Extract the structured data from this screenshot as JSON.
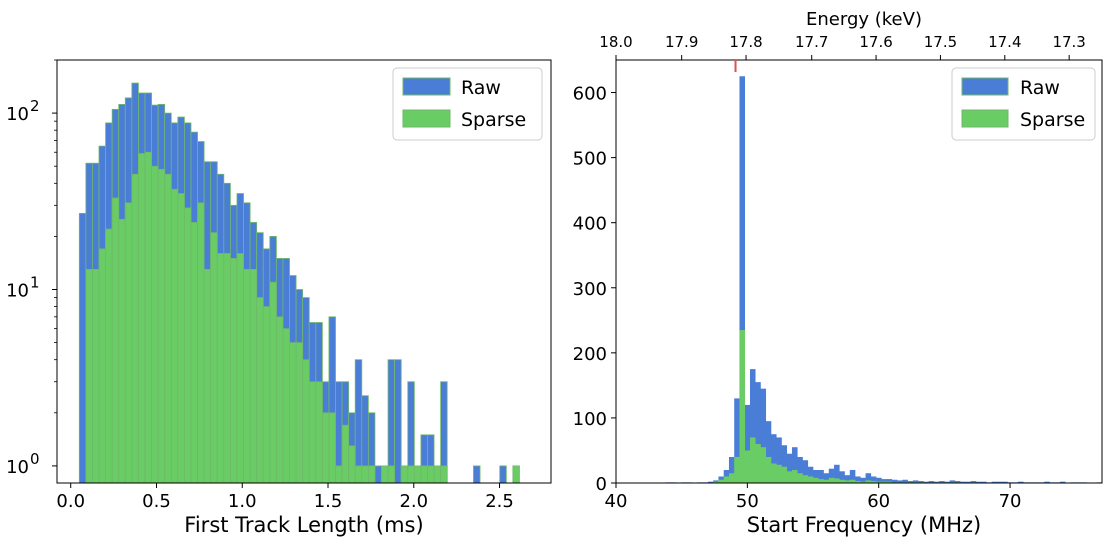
{
  "colors": {
    "raw": "#4a7dd6",
    "sparse": "#6acc64",
    "edge_left": "#6fb86a",
    "marker": "#e05050"
  },
  "chart_data": [
    {
      "type": "bar",
      "xlabel": "First Track Length (ms)",
      "ylabel": "",
      "yscale": "log",
      "xlim": [
        -0.08,
        2.8
      ],
      "ylim": [
        0.8,
        200
      ],
      "xticks": [
        0.0,
        0.5,
        1.0,
        1.5,
        2.0,
        2.5
      ],
      "xtick_labels": [
        "0.0",
        "0.5",
        "1.0",
        "1.5",
        "2.0",
        "2.5"
      ],
      "yticks": [
        1,
        10,
        100
      ],
      "ytick_labels": [
        "10",
        "10",
        "10"
      ],
      "ytick_exponents": [
        "0",
        "1",
        "2"
      ],
      "bin_width": 0.0383,
      "bin_start": 0.05,
      "legend": "top-right",
      "series": [
        {
          "name": "Raw",
          "values": [
            27,
            52,
            52,
            65,
            88,
            105,
            112,
            122,
            148,
            130,
            130,
            111,
            112,
            100,
            88,
            95,
            88,
            78,
            69,
            53,
            53,
            45,
            40,
            30,
            35,
            31,
            24,
            21,
            17,
            20,
            15,
            15,
            12,
            10,
            9,
            6.5,
            6.5,
            3,
            7,
            3,
            3,
            2,
            4,
            2.5,
            2,
            1,
            1,
            4,
            4,
            1,
            3,
            1,
            1.5,
            1.5,
            1,
            3,
            0,
            0,
            0,
            0,
            1,
            0,
            0,
            0,
            1,
            0,
            0
          ]
        },
        {
          "name": "Sparse",
          "values": [
            0,
            13,
            13,
            17,
            22,
            33,
            25,
            31,
            45,
            59,
            60,
            50,
            48,
            45,
            37,
            35,
            29,
            24,
            31,
            13,
            21,
            16,
            16,
            15,
            16,
            13,
            13,
            9,
            8,
            11,
            7,
            6,
            5,
            5,
            4,
            3,
            3,
            2,
            2,
            1,
            1.7,
            1.3,
            1,
            1,
            1,
            0,
            1,
            1,
            0,
            1,
            1,
            1,
            1,
            1,
            1,
            1,
            0,
            0,
            0,
            0,
            0,
            0,
            0,
            0,
            0,
            0,
            1
          ]
        }
      ]
    },
    {
      "type": "bar",
      "xlabel": "Start Frequency (MHz)",
      "ylabel": "",
      "xlim": [
        40,
        77
      ],
      "ylim": [
        0,
        650
      ],
      "xticks": [
        40,
        50,
        60,
        70
      ],
      "xtick_labels": [
        "40",
        "50",
        "60",
        "70"
      ],
      "yticks": [
        0,
        100,
        200,
        300,
        400,
        500,
        600
      ],
      "ytick_labels": [
        "0",
        "100",
        "200",
        "300",
        "400",
        "500",
        "600"
      ],
      "top_axis": {
        "label": "Energy (keV)",
        "ticks_mhz": [
          40.0,
          45.0,
          49.9,
          54.9,
          59.8,
          64.7,
          69.6,
          74.5
        ],
        "tick_labels": [
          "18.0",
          "17.9",
          "17.8",
          "17.7",
          "17.6",
          "17.5",
          "17.4",
          "17.3"
        ],
        "marker_mhz": 49.1
      },
      "bin_width": 0.4,
      "bin_start": 43.0,
      "legend": "top-right",
      "series": [
        {
          "name": "Raw",
          "values": [
            0,
            0,
            1,
            1,
            0,
            1,
            1,
            0,
            1,
            1,
            2,
            4,
            10,
            20,
            40,
            130,
            625,
            120,
            175,
            155,
            145,
            95,
            75,
            70,
            58,
            45,
            55,
            40,
            35,
            25,
            20,
            20,
            15,
            22,
            28,
            18,
            12,
            20,
            10,
            8,
            15,
            10,
            8,
            6,
            6,
            5,
            4,
            5,
            3,
            4,
            3,
            2,
            3,
            2,
            3,
            2,
            4,
            3,
            2,
            2,
            3,
            2,
            2,
            1,
            2,
            2,
            2,
            1,
            1,
            2,
            1,
            1,
            1,
            1,
            2,
            1,
            1,
            2,
            0,
            1,
            1,
            1,
            0,
            0,
            1
          ]
        },
        {
          "name": "Sparse",
          "values": [
            0,
            0,
            0,
            0,
            0,
            0,
            0,
            0,
            0,
            0,
            0,
            2,
            5,
            10,
            15,
            40,
            235,
            50,
            70,
            60,
            55,
            40,
            30,
            28,
            25,
            18,
            20,
            15,
            12,
            10,
            8,
            6,
            5,
            8,
            7,
            5,
            4,
            5,
            3,
            2,
            4,
            3,
            2,
            2,
            2,
            1,
            1,
            1,
            1,
            1,
            1,
            0,
            1,
            0,
            1,
            0,
            1,
            1,
            0,
            0,
            1,
            0,
            0,
            0,
            0,
            0,
            0,
            0,
            0,
            0,
            0,
            0,
            0,
            0,
            0,
            0,
            0,
            0,
            0,
            0,
            0,
            0,
            0,
            0,
            0
          ]
        }
      ]
    }
  ]
}
